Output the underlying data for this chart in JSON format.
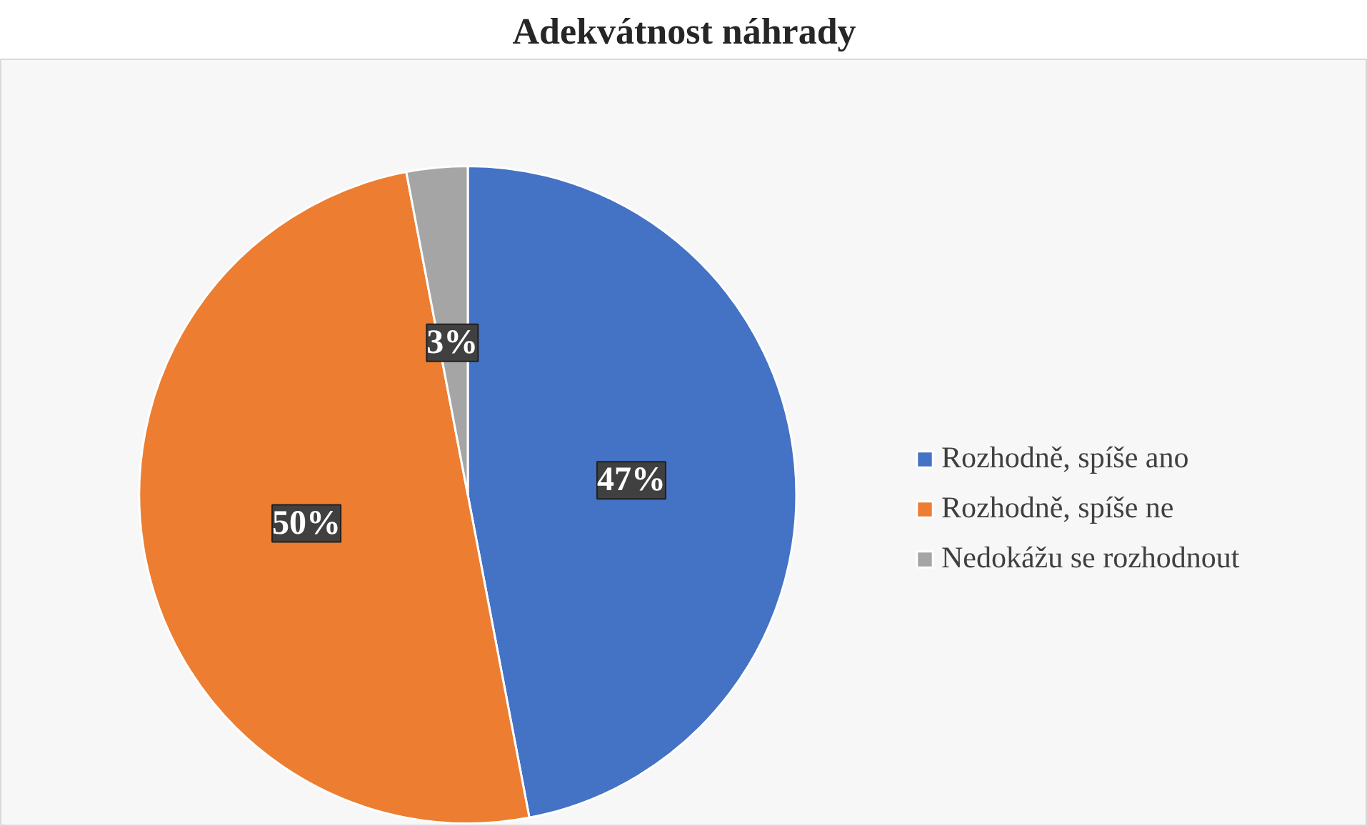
{
  "chart_data": {
    "type": "pie",
    "title": "Adekvátnost náhrady",
    "categories": [
      "Rozhodně, spíše ano",
      "Rozhodně, spíše ne",
      "Nedokážu se rozhodnout"
    ],
    "values": [
      47,
      50,
      3
    ],
    "colors": [
      "#4472c4",
      "#ed7d31",
      "#a5a5a5"
    ],
    "value_labels": [
      "47%",
      "50%",
      "3%"
    ],
    "legend": "right"
  }
}
